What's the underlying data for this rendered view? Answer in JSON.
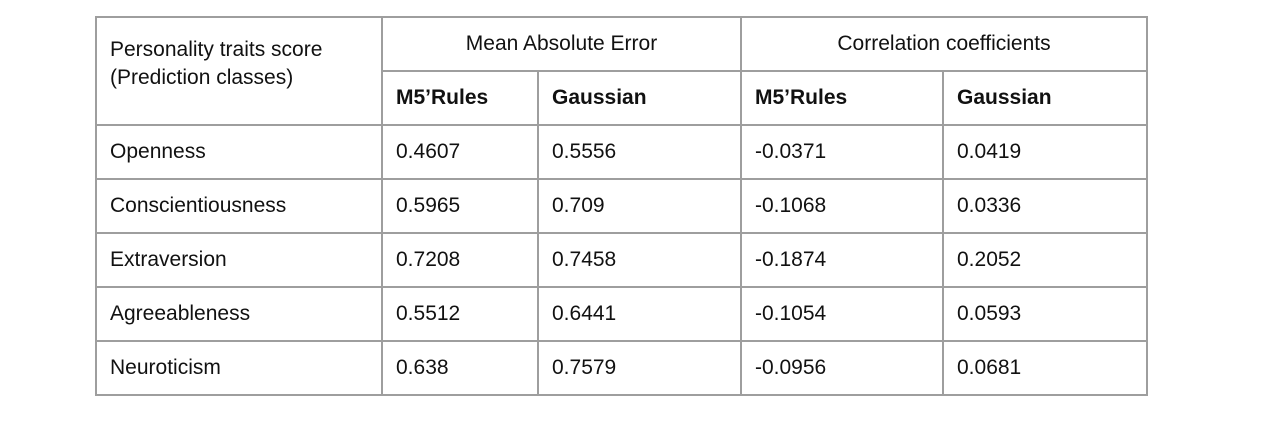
{
  "table": {
    "corner_header": [
      "Personality traits score",
      "(Prediction classes)"
    ],
    "groups": [
      "Mean Absolute Error",
      "Correlation coefficients"
    ],
    "subheaders": [
      "M5’Rules",
      "Gaussian",
      "M5’Rules",
      "Gaussian"
    ],
    "rows": [
      {
        "trait": "Openness",
        "values": [
          "0.4607",
          "0.5556",
          "-0.0371",
          "0.0419"
        ]
      },
      {
        "trait": "Conscientiousness",
        "values": [
          "0.5965",
          "0.709",
          "-0.1068",
          "0.0336"
        ]
      },
      {
        "trait": "Extraversion",
        "values": [
          "0.7208",
          "0.7458",
          "-0.1874",
          "0.2052"
        ]
      },
      {
        "trait": "Agreeableness",
        "values": [
          "0.5512",
          "0.6441",
          "-0.1054",
          "0.0593"
        ]
      },
      {
        "trait": "Neuroticism",
        "values": [
          "0.638",
          "0.7579",
          "-0.0956",
          "0.0681"
        ]
      }
    ]
  }
}
